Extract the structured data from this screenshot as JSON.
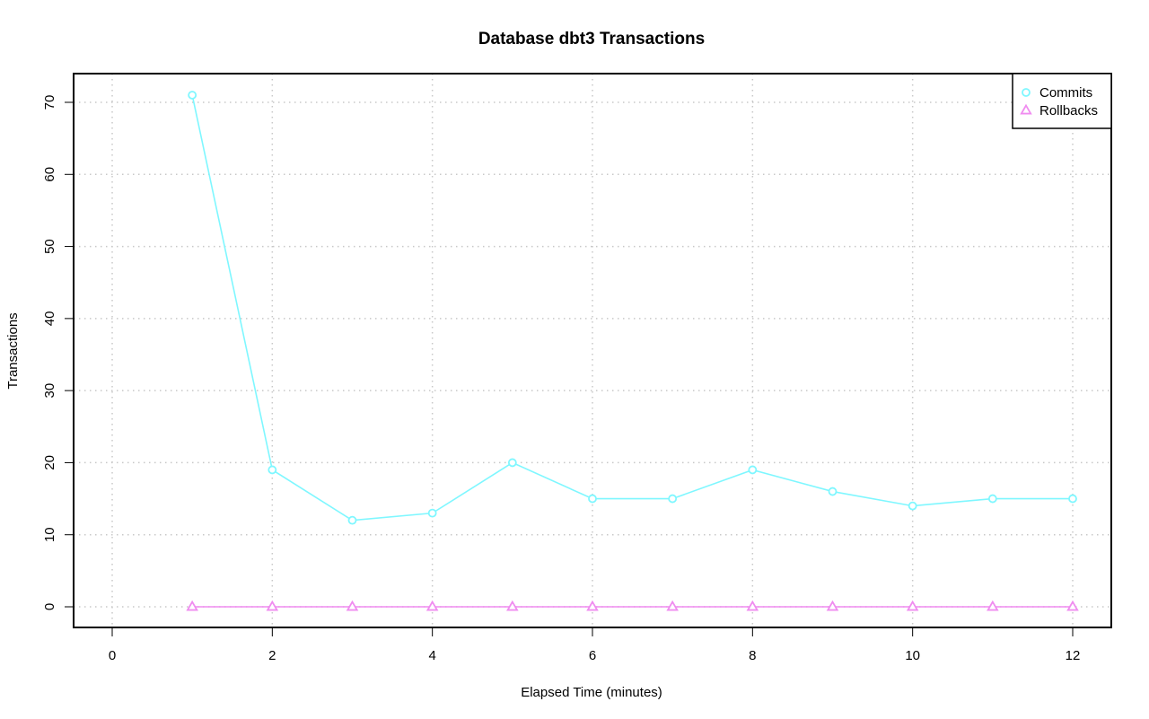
{
  "chart_data": {
    "type": "line",
    "title": "Database dbt3 Transactions",
    "xlabel": "Elapsed Time (minutes)",
    "ylabel": "Transactions",
    "xlim": [
      0,
      12
    ],
    "ylim": [
      0,
      70
    ],
    "x_ticks": [
      "0",
      "2",
      "4",
      "6",
      "8",
      "10",
      "12"
    ],
    "y_ticks": [
      "0",
      "10",
      "20",
      "30",
      "40",
      "50",
      "60",
      "70"
    ],
    "grid": true,
    "legend_position": "top-right",
    "x": [
      1,
      2,
      3,
      4,
      5,
      6,
      7,
      8,
      9,
      10,
      11,
      12
    ],
    "series": [
      {
        "name": "Commits",
        "values": [
          71,
          19,
          12,
          13,
          20,
          15,
          15,
          19,
          16,
          14,
          15,
          15
        ],
        "color": "#7ff7ff",
        "marker": "circle"
      },
      {
        "name": "Rollbacks",
        "values": [
          0,
          0,
          0,
          0,
          0,
          0,
          0,
          0,
          0,
          0,
          0,
          0
        ],
        "color": "#f08cf0",
        "marker": "triangle"
      }
    ]
  }
}
